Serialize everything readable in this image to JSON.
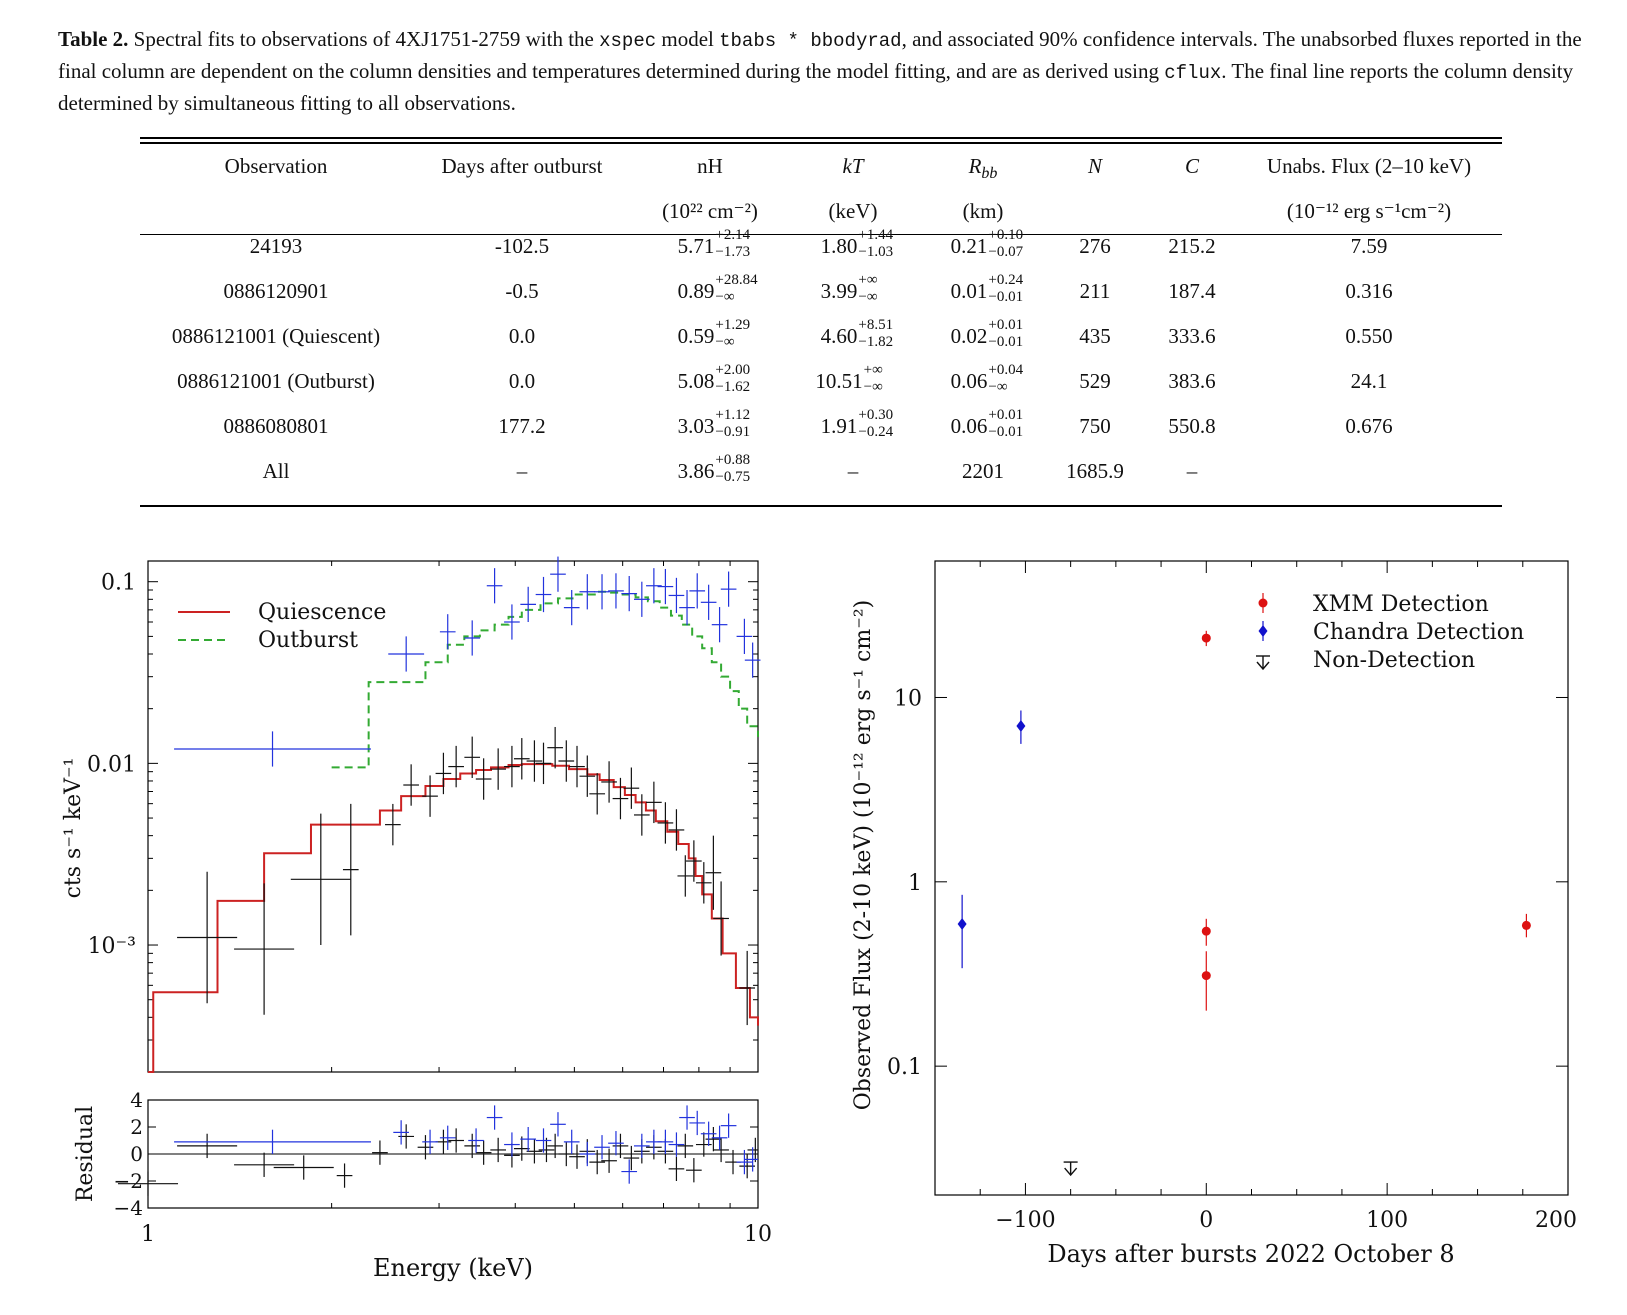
{
  "caption": {
    "label": "Table 2.",
    "seg1": " Spectral fits to observations of 4XJ1751-2759 with the ",
    "code1": "xspec",
    "seg2": " model ",
    "code2": "tbabs * bbodyrad",
    "seg3": ", and associated 90% confidence intervals. The unabsorbed fluxes reported in the final column are dependent on the column densities and temperatures determined during the model fitting, and are as derived using ",
    "code3": "cflux",
    "seg4": ". The final line reports the column density determined by simultaneous fitting to all observations."
  },
  "table": {
    "headers": [
      "Observation",
      "Days after outburst",
      "nH",
      "kT",
      "R",
      "N",
      "C",
      "Unabs. Flux (2–10 keV)"
    ],
    "r_subscript": "bb",
    "units": [
      "",
      "",
      "(10²² cm⁻²)",
      "(keV)",
      "(km)",
      "",
      "",
      "(10⁻¹² erg s⁻¹cm⁻²)"
    ],
    "rows": [
      {
        "obs": "24193",
        "days": "-102.5",
        "nh": "5.71",
        "nh_up": "+2.14",
        "nh_lo": "−1.73",
        "kt": "1.80",
        "kt_up": "+1.44",
        "kt_lo": "−1.03",
        "r": "0.21",
        "r_up": "+0.10",
        "r_lo": "−0.07",
        "n": "276",
        "c": "215.2",
        "flux": "7.59"
      },
      {
        "obs": "0886120901",
        "days": "-0.5",
        "nh": "0.89",
        "nh_up": "+28.84",
        "nh_lo": "−∞",
        "kt": "3.99",
        "kt_up": "+∞",
        "kt_lo": "−∞",
        "r": "0.01",
        "r_up": "+0.24",
        "r_lo": "−0.01",
        "n": "211",
        "c": "187.4",
        "flux": "0.316"
      },
      {
        "obs": "0886121001 (Quiescent)",
        "days": "0.0",
        "nh": "0.59",
        "nh_up": "+1.29",
        "nh_lo": "−∞",
        "kt": "4.60",
        "kt_up": "+8.51",
        "kt_lo": "−1.82",
        "r": "0.02",
        "r_up": "+0.01",
        "r_lo": "−0.01",
        "n": "435",
        "c": "333.6",
        "flux": "0.550"
      },
      {
        "obs": "0886121001 (Outburst)",
        "days": "0.0",
        "nh": "5.08",
        "nh_up": "+2.00",
        "nh_lo": "−1.62",
        "kt": "10.51",
        "kt_up": "+∞",
        "kt_lo": "−∞",
        "r": "0.06",
        "r_up": "+0.04",
        "r_lo": "−∞",
        "n": "529",
        "c": "383.6",
        "flux": "24.1"
      },
      {
        "obs": "0886080801",
        "days": "177.2",
        "nh": "3.03",
        "nh_up": "+1.12",
        "nh_lo": "−0.91",
        "kt": "1.91",
        "kt_up": "+0.30",
        "kt_lo": "−0.24",
        "r": "0.06",
        "r_up": "+0.01",
        "r_lo": "−0.01",
        "n": "750",
        "c": "550.8",
        "flux": "0.676"
      },
      {
        "obs": "All",
        "days": "–",
        "nh": "3.86",
        "nh_up": "+0.88",
        "nh_lo": "−0.75",
        "kt": "–",
        "kt_up": "",
        "kt_lo": "",
        "r": "2201",
        "r_up": "",
        "r_lo": "",
        "n": "1685.9",
        "c": "–",
        "flux": ""
      }
    ]
  },
  "colors": {
    "quiescence": "#cc2222",
    "outburst": "#33aa33",
    "outburst_data": "#2233dd",
    "quiescence_data": "#111111",
    "xmm": "#dd1111",
    "chandra": "#1111cc",
    "nondet": "#111111"
  },
  "chart_data": [
    {
      "type": "line",
      "name": "spectrum",
      "xscale": "log",
      "yscale": "log",
      "xlim": [
        1,
        10
      ],
      "ylim": [
        0.0002,
        0.13
      ],
      "xlabel": "Energy (keV)",
      "ylabel": "cts s⁻¹ keV⁻¹",
      "xticks": [
        "1",
        "10"
      ],
      "yticks": [
        "0.1",
        "0.01",
        "10⁻³"
      ],
      "legend": [
        "Quiescence",
        "Outburst"
      ],
      "legend_position": "top-left",
      "quiescence_model": {
        "x": [
          1.0,
          1.02,
          1.3,
          1.55,
          1.85,
          2.1,
          2.4,
          2.6,
          2.85,
          3.05,
          3.25,
          3.45,
          3.65,
          3.9,
          4.1,
          4.3,
          4.6,
          4.9,
          5.25,
          5.5,
          5.8,
          6.05,
          6.3,
          6.55,
          6.8,
          7.1,
          7.4,
          7.7,
          7.9,
          8.1,
          8.4,
          8.75,
          9.2,
          9.7,
          10.0
        ],
        "y": [
          0.0002,
          0.00055,
          0.00175,
          0.0032,
          0.0046,
          0.0046,
          0.0055,
          0.0066,
          0.0075,
          0.0082,
          0.0088,
          0.0092,
          0.0095,
          0.0098,
          0.0099,
          0.0099,
          0.0097,
          0.0093,
          0.0087,
          0.0081,
          0.0074,
          0.0067,
          0.0061,
          0.0055,
          0.0048,
          0.0042,
          0.0036,
          0.003,
          0.0024,
          0.0019,
          0.0014,
          0.0009,
          0.00058,
          0.0004,
          0.00036
        ]
      },
      "outburst_model": {
        "x": [
          2.0,
          2.3,
          2.85,
          3.1,
          3.3,
          3.5,
          3.7,
          3.9,
          4.1,
          4.4,
          4.7,
          5.0,
          5.4,
          5.7,
          6.0,
          6.3,
          6.6,
          6.9,
          7.2,
          7.5,
          7.8,
          8.1,
          8.4,
          8.7,
          9.0,
          9.3,
          9.6,
          10.0
        ],
        "y": [
          0.0095,
          0.028,
          0.036,
          0.045,
          0.05,
          0.054,
          0.058,
          0.064,
          0.07,
          0.076,
          0.081,
          0.085,
          0.088,
          0.087,
          0.085,
          0.082,
          0.078,
          0.072,
          0.065,
          0.058,
          0.05,
          0.043,
          0.036,
          0.03,
          0.025,
          0.02,
          0.016,
          0.014
        ]
      },
      "quiescence_points": {
        "x": [
          1.25,
          1.55,
          1.92,
          2.15,
          2.52,
          2.7,
          2.9,
          3.05,
          3.2,
          3.4,
          3.55,
          3.75,
          3.95,
          4.1,
          4.3,
          4.45,
          4.65,
          4.85,
          5.05,
          5.25,
          5.45,
          5.7,
          5.95,
          6.2,
          6.45,
          6.75,
          7.05,
          7.35,
          7.6,
          7.85,
          8.15,
          8.45,
          8.7,
          9.6
        ],
        "y": [
          0.0011,
          0.00095,
          0.0023,
          0.0026,
          0.0046,
          0.0076,
          0.0066,
          0.0088,
          0.0096,
          0.0108,
          0.0082,
          0.0093,
          0.0096,
          0.0106,
          0.0103,
          0.01,
          0.0122,
          0.0103,
          0.0096,
          0.0085,
          0.0068,
          0.0079,
          0.0064,
          0.0073,
          0.0052,
          0.0061,
          0.0047,
          0.0043,
          0.0024,
          0.0029,
          0.0022,
          0.0025,
          0.0014,
          0.00058
        ]
      },
      "outburst_points": {
        "x": [
          1.6,
          2.65,
          3.1,
          3.4,
          3.7,
          3.95,
          4.2,
          4.45,
          4.7,
          4.95,
          5.25,
          5.55,
          5.85,
          6.15,
          6.45,
          6.75,
          7.05,
          7.35,
          7.65,
          7.95,
          8.3,
          8.65,
          8.95,
          9.5,
          9.8
        ],
        "y": [
          0.012,
          0.04,
          0.053,
          0.049,
          0.095,
          0.06,
          0.075,
          0.085,
          0.11,
          0.072,
          0.088,
          0.088,
          0.089,
          0.086,
          0.08,
          0.095,
          0.094,
          0.084,
          0.072,
          0.089,
          0.077,
          0.058,
          0.091,
          0.05,
          0.037
        ]
      }
    },
    {
      "type": "scatter",
      "name": "residual",
      "xscale": "log",
      "xlim": [
        1,
        10
      ],
      "ylim": [
        -4,
        4
      ],
      "ylabel": "Residual",
      "yticks": [
        "4",
        "2",
        "0",
        "−2",
        "−4"
      ],
      "quiescence_x": [
        1.0,
        1.25,
        1.55,
        1.8,
        2.1,
        2.4,
        2.65,
        2.85,
        3.05,
        3.2,
        3.4,
        3.55,
        3.75,
        3.95,
        4.1,
        4.3,
        4.5,
        4.65,
        4.85,
        5.05,
        5.25,
        5.45,
        5.7,
        5.95,
        6.2,
        6.45,
        6.75,
        7.05,
        7.35,
        7.6,
        7.85,
        8.15,
        8.45,
        8.7,
        9.1,
        9.6,
        9.9
      ],
      "quiescence_y": [
        -2.2,
        0.6,
        -0.8,
        -1.0,
        -1.6,
        0.1,
        1.3,
        0.5,
        0.9,
        1.0,
        0.6,
        0.1,
        0.3,
        -0.1,
        0.4,
        0.2,
        0.3,
        0.6,
        0.0,
        -0.2,
        0.2,
        -0.6,
        -0.5,
        0.6,
        -0.3,
        0.2,
        0.5,
        0.2,
        -1.1,
        0.6,
        -1.2,
        0.7,
        1.1,
        0.3,
        -0.6,
        -0.9,
        0.3
      ],
      "outburst_x": [
        1.6,
        2.6,
        2.9,
        3.1,
        3.45,
        3.7,
        3.95,
        4.2,
        4.45,
        4.7,
        4.95,
        5.25,
        5.55,
        5.85,
        6.15,
        6.45,
        6.75,
        7.05,
        7.35,
        7.65,
        7.95,
        8.3,
        8.65,
        8.95,
        9.5,
        9.8
      ],
      "outburst_y": [
        0.9,
        1.6,
        0.9,
        1.2,
        1.0,
        2.7,
        0.7,
        1.1,
        1.0,
        2.2,
        0.9,
        0.0,
        0.5,
        0.8,
        -1.3,
        0.6,
        0.9,
        0.9,
        0.7,
        2.7,
        2.3,
        1.5,
        1.2,
        2.1,
        -0.6,
        -0.4
      ]
    },
    {
      "type": "scatter",
      "name": "lightcurve",
      "yscale": "log",
      "xlim": [
        -150,
        200
      ],
      "ylim": [
        0.02,
        55
      ],
      "xlabel": "Days after bursts 2022 October 8",
      "ylabel": "Observed Flux (2-10 keV) (10⁻¹² erg s⁻¹ cm⁻²)",
      "xticks": [
        "−100",
        "0",
        "100",
        "200"
      ],
      "yticks": [
        "10",
        "1",
        "0.1"
      ],
      "legend": [
        "XMM Detection",
        "Chandra Detection",
        "Non-Detection"
      ],
      "legend_position": "top-right",
      "xmm": [
        {
          "x": 0,
          "y": 21,
          "lo": 19,
          "hi": 23
        },
        {
          "x": 0,
          "y": 0.54,
          "lo": 0.45,
          "hi": 0.63
        },
        {
          "x": 0,
          "y": 0.31,
          "lo": 0.2,
          "hi": 0.42
        },
        {
          "x": 177,
          "y": 0.58,
          "lo": 0.5,
          "hi": 0.67
        }
      ],
      "chandra": [
        {
          "x": -135,
          "y": 0.59,
          "lo": 0.34,
          "hi": 0.85
        },
        {
          "x": -102.5,
          "y": 7.0,
          "lo": 5.6,
          "hi": 8.5
        }
      ],
      "nondetection": [
        {
          "x": -75,
          "y": 0.028
        }
      ]
    }
  ]
}
